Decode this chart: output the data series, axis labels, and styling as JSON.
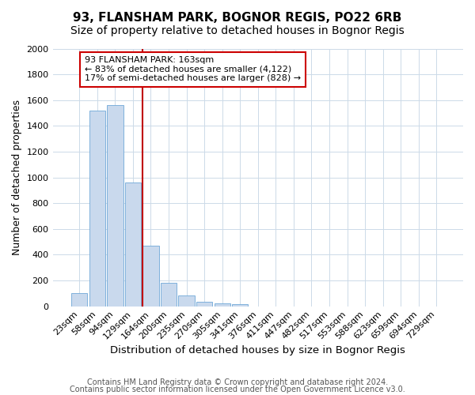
{
  "title1": "93, FLANSHAM PARK, BOGNOR REGIS, PO22 6RB",
  "title2": "Size of property relative to detached houses in Bognor Regis",
  "xlabel": "Distribution of detached houses by size in Bognor Regis",
  "ylabel": "Number of detached properties",
  "bin_labels": [
    "23sqm",
    "58sqm",
    "94sqm",
    "129sqm",
    "164sqm",
    "200sqm",
    "235sqm",
    "270sqm",
    "305sqm",
    "341sqm",
    "376sqm",
    "411sqm",
    "447sqm",
    "482sqm",
    "517sqm",
    "553sqm",
    "588sqm",
    "623sqm",
    "659sqm",
    "694sqm",
    "729sqm"
  ],
  "values": [
    100,
    1520,
    1560,
    960,
    470,
    180,
    85,
    35,
    25,
    15,
    0,
    0,
    0,
    0,
    0,
    0,
    0,
    0,
    0,
    0,
    0
  ],
  "bar_color": "#c9d9ed",
  "bar_edge_color": "#6fa8d8",
  "highlight_bin_index": 4,
  "highlight_line_color": "#c00000",
  "annotation_line1": "93 FLANSHAM PARK: 163sqm",
  "annotation_line2": "← 83% of detached houses are smaller (4,122)",
  "annotation_line3": "17% of semi-detached houses are larger (828) →",
  "annotation_box_facecolor": "#ffffff",
  "annotation_box_edgecolor": "#cc0000",
  "ylim_max": 2000,
  "yticks": [
    0,
    200,
    400,
    600,
    800,
    1000,
    1200,
    1400,
    1600,
    1800,
    2000
  ],
  "footer1": "Contains HM Land Registry data © Crown copyright and database right 2024.",
  "footer2": "Contains public sector information licensed under the Open Government Licence v3.0.",
  "bg_color": "#ffffff",
  "grid_color": "#ccdae8",
  "title1_fontsize": 11,
  "title2_fontsize": 10,
  "ylabel_fontsize": 9,
  "xlabel_fontsize": 9.5,
  "tick_fontsize": 8,
  "annotation_fontsize": 8,
  "footer_fontsize": 7
}
